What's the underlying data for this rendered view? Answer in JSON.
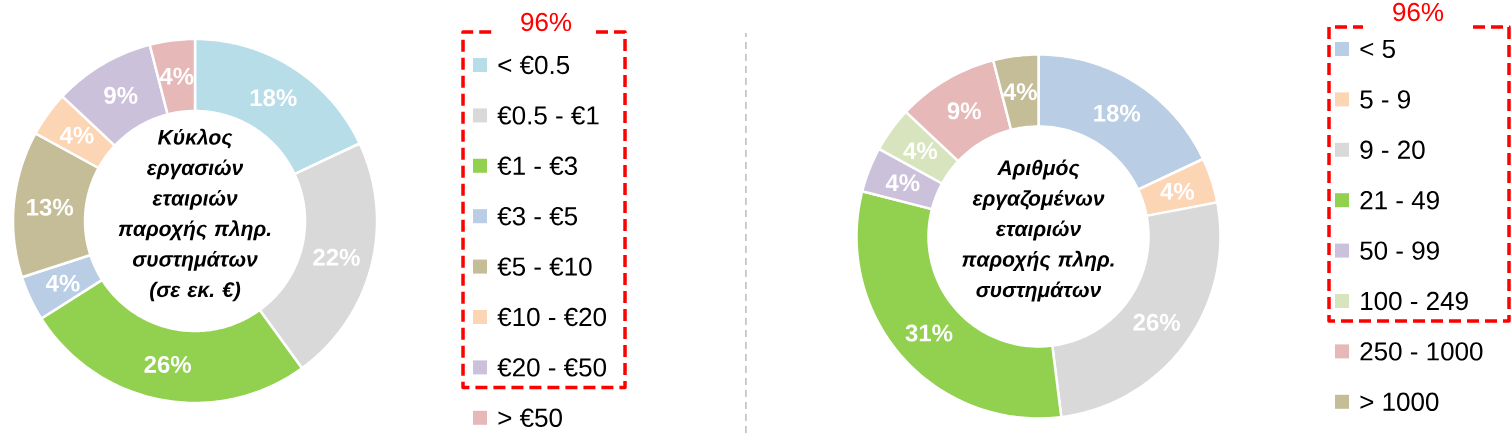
{
  "chart_data": [
    {
      "type": "donut",
      "title": "Κύκλος εργασιών εταιριών παροχής πληρ. συστημάτων (σε εκ. €)",
      "categories": [
        "< €0.5",
        "€0.5 - €1",
        "€1 - €3",
        "€3 - €5",
        "€5 - €10",
        "€10 - €20",
        "€20 - €50",
        "> €50"
      ],
      "values": [
        18,
        22,
        26,
        4,
        13,
        4,
        9,
        4
      ],
      "value_labels": [
        "18%",
        "22%",
        "26%",
        "4%",
        "13%",
        "4%",
        "9%",
        "4%"
      ],
      "colors": [
        "#b7dde8",
        "#d9d9d9",
        "#92d050",
        "#b9cde5",
        "#c4bd97",
        "#fcd5b5",
        "#ccc1da",
        "#e6b9b8"
      ],
      "legend": "right",
      "annotations": [
        "96%"
      ]
    },
    {
      "type": "donut",
      "title": "Αριθμός εργαζομένων εταιριών παροχής πληρ. συστημάτων",
      "categories": [
        "< 5",
        "5 - 9",
        "9 - 20",
        "21 - 49",
        "50 - 99",
        "100 - 249",
        "250 - 1000",
        "> 1000"
      ],
      "values": [
        18,
        4,
        26,
        31,
        4,
        4,
        9,
        4
      ],
      "value_labels": [
        "18%",
        "4%",
        "26%",
        "31%",
        "4%",
        "4%",
        "9%",
        "4%"
      ],
      "colors": [
        "#b9cde5",
        "#fcd5b5",
        "#d9d9d9",
        "#92d050",
        "#ccc1da",
        "#d7e4bd",
        "#e6b9b8",
        "#c4bd97"
      ],
      "legend": "right",
      "annotations": [
        "96%"
      ]
    }
  ]
}
